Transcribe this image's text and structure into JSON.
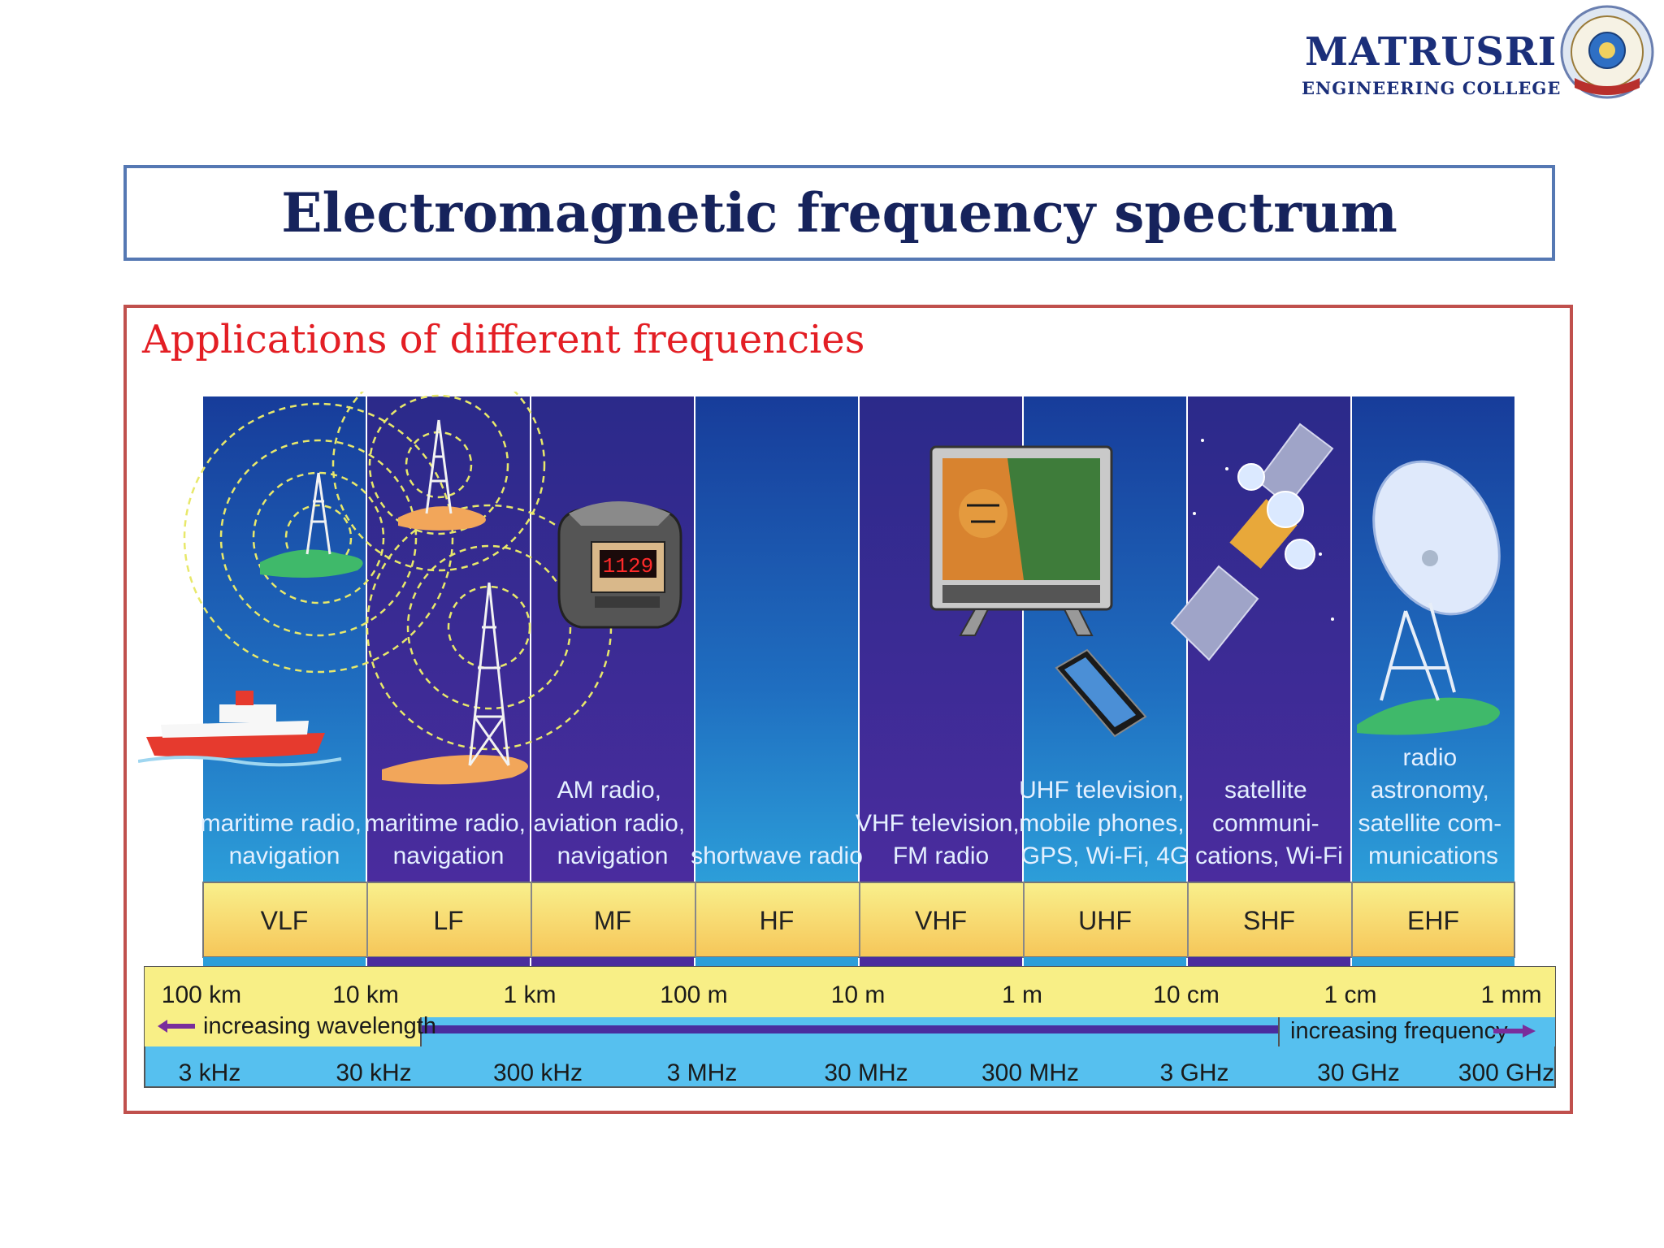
{
  "logo": {
    "name": "MATRUSRI",
    "subtitle": "ENGINEERING COLLEGE"
  },
  "title": "Electromagnetic frequency spectrum",
  "subtitle": "Applications of different frequencies",
  "bands": [
    {
      "name": "VLF",
      "application": [
        "maritime radio,",
        "navigation"
      ],
      "illustration": "ship-and-tower-icon"
    },
    {
      "name": "LF",
      "application": [
        "maritime radio,",
        "navigation"
      ],
      "illustration": "radio-tower-icon"
    },
    {
      "name": "MF",
      "application": [
        "AM radio,",
        "aviation radio,",
        "navigation"
      ],
      "illustration": "clock-radio-icon"
    },
    {
      "name": "HF",
      "application": [
        "shortwave radio"
      ],
      "illustration": ""
    },
    {
      "name": "VHF",
      "application": [
        "VHF television,",
        "FM radio"
      ],
      "illustration": "television-icon"
    },
    {
      "name": "UHF",
      "application": [
        "UHF television,",
        "mobile phones,",
        "GPS, Wi-Fi, 4G"
      ],
      "illustration": "mobile-phone-icon"
    },
    {
      "name": "SHF",
      "application": [
        "satellite",
        "communi-",
        "cations, Wi-Fi"
      ],
      "illustration": "satellite-icon"
    },
    {
      "name": "EHF",
      "application": [
        "radio",
        "astronomy,",
        "satellite com-",
        "munications"
      ],
      "illustration": "satellite-dish-icon"
    }
  ],
  "clock_display": "1129",
  "wavelengths": [
    "100 km",
    "10 km",
    "1 km",
    "100 m",
    "10 m",
    "1 m",
    "10 cm",
    "1 cm",
    "1 mm"
  ],
  "frequencies": [
    "3 kHz",
    "30 kHz",
    "300 kHz",
    "3 MHz",
    "30 MHz",
    "300 MHz",
    "3 GHz",
    "30 GHz",
    "300 GHz"
  ],
  "wavelength_arrow": "increasing wavelength",
  "frequency_arrow": "increasing frequency",
  "colors": {
    "band_dark": "#3a2a94",
    "band_light": "#1e5fb8",
    "label_yellow": "#f7ee7e",
    "label_orange": "#f7c75c",
    "scale_yellow": "#f8ef86",
    "scale_blue": "#56c0ef",
    "arrow_purple": "#7a2d9c"
  }
}
